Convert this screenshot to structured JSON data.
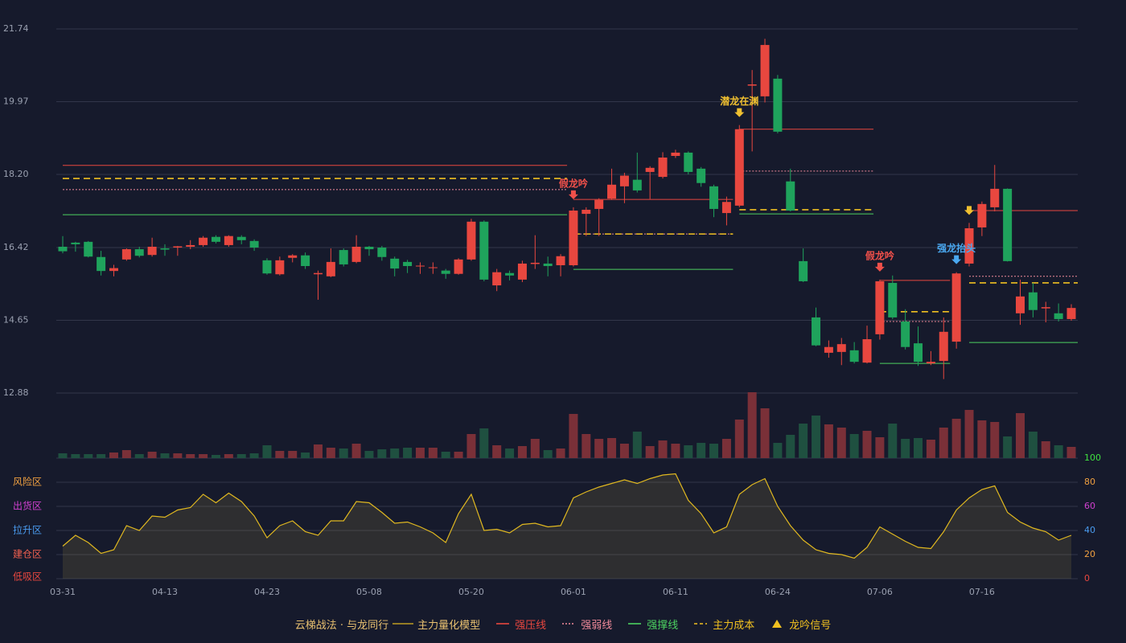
{
  "chart_data": {
    "type": "candlestick",
    "title": "云梯战法 · 与龙同行",
    "categories": [
      "03-31",
      null,
      null,
      null,
      null,
      null,
      null,
      null,
      "04-13",
      null,
      null,
      null,
      null,
      null,
      null,
      null,
      "04-23",
      null,
      null,
      null,
      null,
      null,
      null,
      null,
      "05-08",
      null,
      null,
      null,
      null,
      null,
      null,
      null,
      "05-20",
      null,
      null,
      null,
      null,
      null,
      null,
      null,
      "06-01",
      null,
      null,
      null,
      null,
      null,
      null,
      null,
      "06-11",
      null,
      null,
      null,
      null,
      null,
      null,
      null,
      "06-24",
      null,
      null,
      null,
      null,
      null,
      null,
      null,
      "07-06",
      null,
      null,
      null,
      null,
      null,
      null,
      null,
      "07-16",
      null,
      null,
      null,
      null,
      null,
      null,
      null
    ],
    "ohlc": {
      "open": [
        16.44,
        16.54,
        16.56,
        16.19,
        15.85,
        16.13,
        16.38,
        16.24,
        16.4,
        16.42,
        16.44,
        16.48,
        16.68,
        16.48,
        16.68,
        16.58,
        16.11,
        15.77,
        16.17,
        16.23,
        15.77,
        15.72,
        16.36,
        16.07,
        16.44,
        16.42,
        16.15,
        16.07,
        15.96,
        15.92,
        15.86,
        15.78,
        16.13,
        17.05,
        15.5,
        15.8,
        15.64,
        16.02,
        16.03,
        15.99,
        15.99,
        17.24,
        17.36,
        17.61,
        17.91,
        18.07,
        18.26,
        18.14,
        18.65,
        18.73,
        18.34,
        17.91,
        17.26,
        17.44,
        20.36,
        20.1,
        20.53,
        18.03,
        16.09,
        14.72,
        13.86,
        13.88,
        13.92,
        13.62,
        14.31,
        15.56,
        14.62,
        14.09,
        13.6,
        13.66,
        14.13,
        16.03,
        16.91,
        17.4,
        17.85,
        14.82,
        15.33,
        14.94,
        14.82,
        14.68
      ],
      "high": [
        16.7,
        16.56,
        16.58,
        16.34,
        16.0,
        16.4,
        16.44,
        16.66,
        16.5,
        16.46,
        16.6,
        16.7,
        16.72,
        16.72,
        16.72,
        16.62,
        16.16,
        16.2,
        16.26,
        16.3,
        15.86,
        16.4,
        16.4,
        16.72,
        16.46,
        16.46,
        16.2,
        16.12,
        16.06,
        16.06,
        15.9,
        16.16,
        17.12,
        17.08,
        15.9,
        15.86,
        16.1,
        16.72,
        16.2,
        16.26,
        17.4,
        17.4,
        17.62,
        18.34,
        18.24,
        18.73,
        18.4,
        18.74,
        18.8,
        18.76,
        18.38,
        17.95,
        17.66,
        19.4,
        20.74,
        21.5,
        20.62,
        18.34,
        16.4,
        14.96,
        14.16,
        14.22,
        14.12,
        14.52,
        15.64,
        15.74,
        14.92,
        14.5,
        13.9,
        14.72,
        15.82,
        17.02,
        17.54,
        18.43,
        17.86,
        15.64,
        15.56,
        15.1,
        15.06,
        15.04
      ],
      "low": [
        16.28,
        16.32,
        16.18,
        15.74,
        15.72,
        16.1,
        16.18,
        16.2,
        16.22,
        16.22,
        16.38,
        16.44,
        16.52,
        16.44,
        16.5,
        16.34,
        15.76,
        15.74,
        16.06,
        15.9,
        15.15,
        15.7,
        15.96,
        16.04,
        16.22,
        16.1,
        15.72,
        15.8,
        15.78,
        15.78,
        15.66,
        15.76,
        16.1,
        15.6,
        15.36,
        15.62,
        15.58,
        15.9,
        15.72,
        15.72,
        15.96,
        16.7,
        16.7,
        17.58,
        17.5,
        17.76,
        17.6,
        18.1,
        18.6,
        18.2,
        17.9,
        17.16,
        16.96,
        17.4,
        18.76,
        19.95,
        19.2,
        17.3,
        15.58,
        14.02,
        13.74,
        13.56,
        13.6,
        13.6,
        14.18,
        14.68,
        13.94,
        13.54,
        13.56,
        13.22,
        13.96,
        15.96,
        16.7,
        17.3,
        16.08,
        14.54,
        14.72,
        14.6,
        14.62,
        14.64
      ],
      "close": [
        16.33,
        16.5,
        16.2,
        15.85,
        15.92,
        16.38,
        16.22,
        16.44,
        16.37,
        16.45,
        16.48,
        16.66,
        16.56,
        16.7,
        16.6,
        16.42,
        15.79,
        16.11,
        16.23,
        15.97,
        15.8,
        16.07,
        16.01,
        16.44,
        16.38,
        16.19,
        15.91,
        15.97,
        15.98,
        15.94,
        15.78,
        16.13,
        17.05,
        15.64,
        15.82,
        15.74,
        16.03,
        16.05,
        15.97,
        16.21,
        17.32,
        17.34,
        17.58,
        17.95,
        18.17,
        17.81,
        18.36,
        18.61,
        18.73,
        18.26,
        17.99,
        17.36,
        17.53,
        19.3,
        20.39,
        21.35,
        19.24,
        17.32,
        15.6,
        14.04,
        14.0,
        14.07,
        13.64,
        14.19,
        15.6,
        14.72,
        14.0,
        13.64,
        13.64,
        14.37,
        15.79,
        16.89,
        17.48,
        17.85,
        16.09,
        15.23,
        14.9,
        14.97,
        14.68,
        14.95
      ]
    },
    "up_color": "#e8473f",
    "down_color": "#1fa35c",
    "ylim": [
      12.88,
      21.74
    ],
    "yticks": [
      12.88,
      14.65,
      16.42,
      {
        "value": 18.2,
        "label": "18.20"
      },
      19.97,
      21.74
    ],
    "grid": true,
    "volume": {
      "values": [
        6,
        5,
        5,
        5,
        7,
        10,
        5,
        8,
        6,
        6,
        5,
        5,
        4,
        5,
        5,
        6,
        16,
        9,
        9,
        7,
        17,
        13,
        12,
        18,
        9,
        11,
        12,
        13,
        13,
        13,
        8,
        8,
        30,
        37,
        16,
        12,
        15,
        24,
        10,
        12,
        55,
        30,
        24,
        25,
        18,
        33,
        15,
        22,
        18,
        16,
        19,
        18,
        24,
        48,
        82,
        62,
        19,
        29,
        43,
        53,
        42,
        38,
        30,
        34,
        26,
        43,
        24,
        25,
        23,
        38,
        49,
        60,
        47,
        45,
        27,
        56,
        33,
        21,
        16,
        14
      ],
      "up_color": "#7a3038",
      "down_color": "#1f5040"
    },
    "indicator": {
      "name": "主力量化模型",
      "color": "#e0b820",
      "values": [
        27,
        36,
        30,
        21,
        24,
        44,
        40,
        52,
        51,
        57,
        59,
        70,
        63,
        71,
        64,
        52,
        34,
        44,
        48,
        39,
        36,
        48,
        48,
        64,
        63,
        55,
        46,
        47,
        43,
        38,
        30,
        54,
        70,
        40,
        41,
        38,
        45,
        46,
        43,
        44,
        67,
        72,
        76,
        79,
        82,
        79,
        83,
        86,
        87,
        65,
        54,
        38,
        43,
        70,
        78,
        83,
        60,
        44,
        32,
        24,
        21,
        20,
        17,
        26,
        43,
        37,
        31,
        26,
        25,
        39,
        57,
        67,
        74,
        77,
        55,
        47,
        42,
        39,
        32,
        36
      ],
      "y2lim": [
        0,
        100
      ],
      "y2ticks": [
        0,
        20,
        40,
        60,
        80,
        100
      ],
      "y2tick_colors": [
        "#e8473f",
        "#f0a040",
        "#4a9cf0",
        "#d040d0",
        "#f0a040",
        "#40e040"
      ],
      "zones": [
        {
          "value": 80,
          "label": "风险区",
          "color": "#f0a040"
        },
        {
          "value": 60,
          "label": "出货区",
          "color": "#d040d0"
        },
        {
          "value": 40,
          "label": "拉升区",
          "color": "#4a9cf0"
        },
        {
          "value": 20,
          "label": "建仓区",
          "color": "#f06050"
        },
        {
          "value": 0,
          "label": "低吸区",
          "color": "#e8473f"
        }
      ]
    },
    "levels": [
      {
        "name": "强压线",
        "color": "#e8473f",
        "dash": "none",
        "segments": [
          {
            "start": 0,
            "end": 39,
            "value": 18.42
          },
          {
            "start": 40,
            "end": 52,
            "value": 17.59
          },
          {
            "start": 53,
            "end": 63,
            "value": 19.3
          },
          {
            "start": 64,
            "end": 69,
            "value": 15.62
          },
          {
            "start": 71,
            "end": 79,
            "value": 17.32
          }
        ]
      },
      {
        "name": "强弱线",
        "color": "#f08a9a",
        "dash": "2,2",
        "segments": [
          {
            "start": 0,
            "end": 39,
            "value": 17.83
          },
          {
            "start": 40,
            "end": 52,
            "value": 16.75
          },
          {
            "start": 53,
            "end": 63,
            "value": 18.28
          },
          {
            "start": 64,
            "end": 69,
            "value": 14.62
          },
          {
            "start": 71,
            "end": 79,
            "value": 15.72
          }
        ]
      },
      {
        "name": "强撑线",
        "color": "#4cd060",
        "dash": "none",
        "segments": [
          {
            "start": 0,
            "end": 39,
            "value": 17.22
          },
          {
            "start": 40,
            "end": 52,
            "value": 15.89
          },
          {
            "start": 53,
            "end": 63,
            "value": 17.24
          },
          {
            "start": 64,
            "end": 69,
            "value": 13.6
          },
          {
            "start": 71,
            "end": 79,
            "value": 14.11
          }
        ]
      },
      {
        "name": "主力成本",
        "color": "#f0c020",
        "dash": "8,5",
        "segments": [
          {
            "start": 0,
            "end": 39,
            "value": 18.1
          },
          {
            "start": 40,
            "end": 52,
            "value": 16.75
          },
          {
            "start": 53,
            "end": 63,
            "value": 17.34
          },
          {
            "start": 64,
            "end": 69,
            "value": 14.86
          },
          {
            "start": 71,
            "end": 79,
            "value": 15.56
          }
        ]
      }
    ],
    "signal": {
      "name": "龙吟信号",
      "color": "#f0c020"
    },
    "annotations": [
      {
        "index": 40,
        "label": "假龙吟",
        "color": "#f0504a"
      },
      {
        "index": 53,
        "label": "潜龙在渊",
        "color": "#f0c030"
      },
      {
        "index": 64,
        "label": "假龙吟",
        "color": "#f0504a"
      },
      {
        "index": 70,
        "label": "强龙抬头",
        "color": "#4aa8f0"
      },
      {
        "index": 71,
        "color": "#f0c030"
      }
    ]
  }
}
